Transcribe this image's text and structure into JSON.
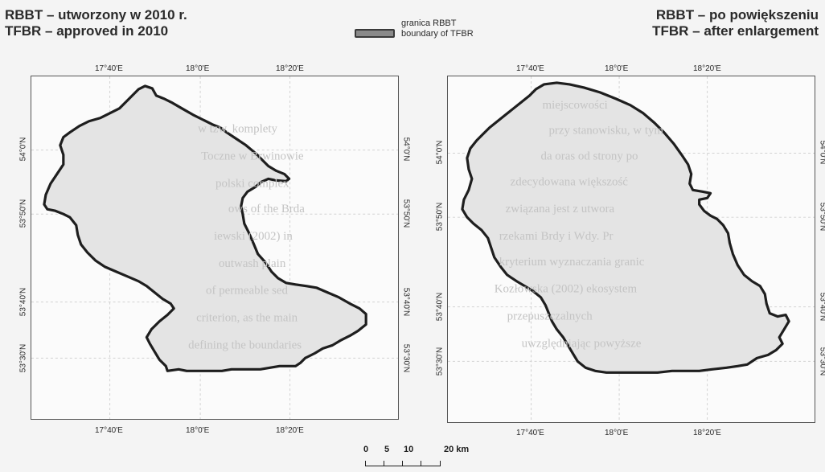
{
  "title_left": {
    "line1": "RBBT – utworzony w 2010 r.",
    "line2": "TFBR – approved in 2010"
  },
  "title_right": {
    "line1": "RBBT – po powiększeniu",
    "line2": "TFBR – after enlargement"
  },
  "legend": {
    "line1": "granica RBBT",
    "line2": "boundary of TFBR",
    "swatch_color": "#8a8a8a"
  },
  "map_left": {
    "top_ticks": [
      "17°40'E",
      "18°0'E",
      "18°20'E"
    ],
    "bottom_ticks": [
      "17°40'E",
      "18°0'E",
      "18°20'E"
    ],
    "left_ticks": [
      "54°0'N",
      "53°50'N",
      "53°40'N",
      "53°30'N"
    ],
    "right_ticks": [
      "54°0'N",
      "53°50'N",
      "53°40'N",
      "53°30'N"
    ]
  },
  "map_right": {
    "top_ticks": [
      "17°40'E",
      "18°0'E",
      "18°20'E"
    ],
    "bottom_ticks": [
      "17°40'E",
      "18°0'E",
      "18°20'E"
    ],
    "left_ticks": [
      "54°0'N",
      "53°50'N",
      "53°40'N",
      "53°30'N"
    ],
    "right_ticks": [
      "54°0'N",
      "53°50'N",
      "53°40'N",
      "53°30'N"
    ]
  },
  "scale_bar": {
    "labels": [
      "0",
      "5",
      "10",
      "20 km"
    ]
  },
  "colors": {
    "boundary": "#1e1e1e",
    "reserve_fill": "#e4e4e4"
  }
}
